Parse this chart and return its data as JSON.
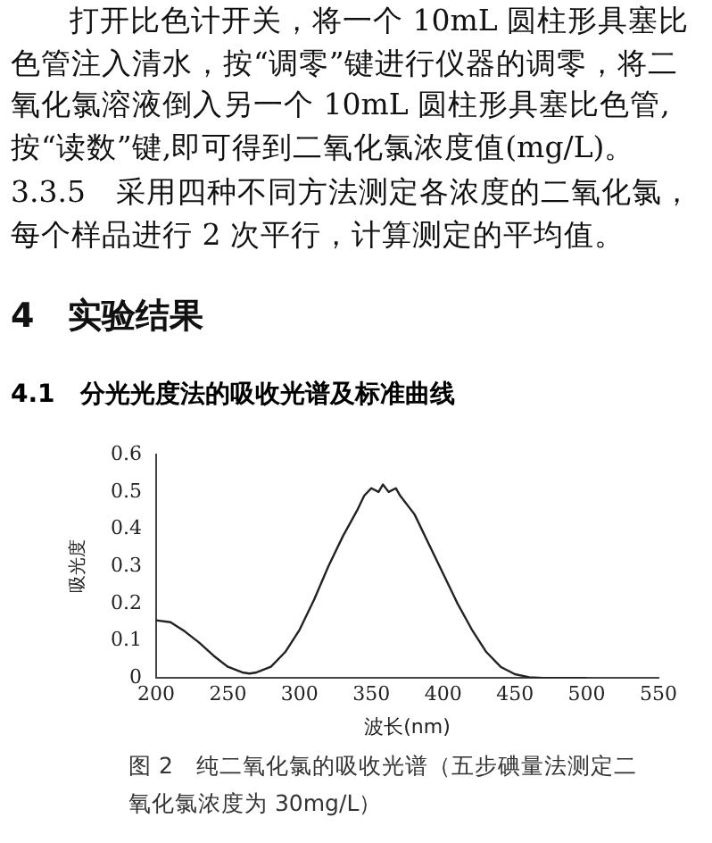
{
  "chart_data": {
    "type": "line",
    "title": "4.1　分光光度法的吸收光谱及标准曲线",
    "annotations": [
      "打开比色计开关，将一个 10mL 圆柱形具塞比色管注入清水，按“调零”键进行仪器的调零，将二氧化氯溶液倒入另一个 10mL 圆柱形具塞比色管,按“读数”键,即可得到二氧化氯浓度值(mg/L)。",
      "3.3.5　采用四种不同方法测定各浓度的二氧化氯，每个样品进行 2 次平行，计算测定的平均值。",
      "4　实验结果",
      "图 2　纯二氧化氯的吸收光谱（五步碘量法测定二氧化氯浓度为 30mg/L）"
    ],
    "xlabel": "波长(nm)",
    "ylabel": "吸光度",
    "x": [
      200,
      210,
      220,
      230,
      240,
      250,
      260,
      265,
      270,
      280,
      290,
      300,
      310,
      320,
      330,
      340,
      345,
      350,
      355,
      358,
      362,
      367,
      370,
      380,
      390,
      400,
      410,
      420,
      430,
      440,
      450,
      460,
      470,
      480,
      490,
      500
    ],
    "series": [
      {
        "color": "#222222",
        "values": [
          0.155,
          0.15,
          0.125,
          0.095,
          0.06,
          0.03,
          0.015,
          0.012,
          0.015,
          0.03,
          0.07,
          0.13,
          0.21,
          0.3,
          0.38,
          0.45,
          0.49,
          0.51,
          0.5,
          0.52,
          0.5,
          0.51,
          0.49,
          0.44,
          0.36,
          0.28,
          0.2,
          0.13,
          0.07,
          0.03,
          0.01,
          0.002,
          0,
          0,
          0,
          0
        ]
      }
    ],
    "xlim": [
      200,
      550
    ],
    "xticks": [
      200,
      250,
      300,
      350,
      400,
      450,
      500,
      550
    ],
    "ylim": [
      0,
      0.6
    ],
    "yticks": [
      0,
      0.1,
      0.2,
      0.3,
      0.4,
      0.5,
      0.6
    ],
    "grid": false,
    "legend": false,
    "marker": "none",
    "line_style": "solid"
  }
}
